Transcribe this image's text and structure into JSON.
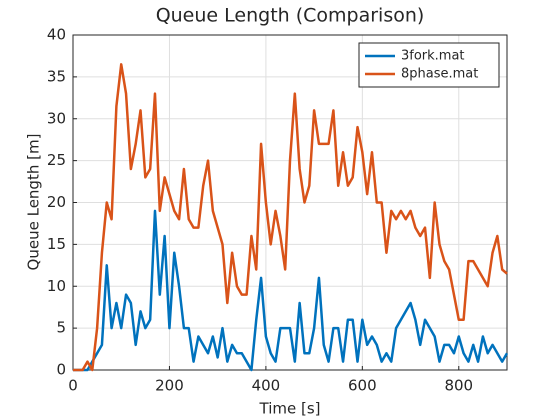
{
  "chart_data": {
    "type": "line",
    "title": "Queue Length (Comparison)",
    "xlabel": "Time [s]",
    "ylabel": "Queue Length [m]",
    "x": [
      0,
      10,
      20,
      30,
      40,
      50,
      60,
      70,
      80,
      90,
      100,
      110,
      120,
      130,
      140,
      150,
      160,
      170,
      180,
      190,
      200,
      210,
      220,
      230,
      240,
      250,
      260,
      270,
      280,
      290,
      300,
      310,
      320,
      330,
      340,
      350,
      360,
      370,
      380,
      390,
      400,
      410,
      420,
      430,
      440,
      450,
      460,
      470,
      480,
      490,
      500,
      510,
      520,
      530,
      540,
      550,
      560,
      570,
      580,
      590,
      600,
      610,
      620,
      630,
      640,
      650,
      660,
      670,
      680,
      690,
      700,
      710,
      720,
      730,
      740,
      750,
      760,
      770,
      780,
      790,
      800,
      810,
      820,
      830,
      840,
      850,
      860,
      870,
      880,
      890,
      900
    ],
    "series": [
      {
        "name": "3fork.mat",
        "color": "#0072BD",
        "values": [
          0,
          0,
          0,
          0,
          1,
          2,
          3,
          12.5,
          5,
          8,
          5,
          9,
          8,
          3,
          7,
          5,
          6,
          19,
          9,
          16,
          5,
          14,
          10,
          5,
          5,
          1,
          4,
          3,
          2,
          4,
          1.5,
          5,
          1,
          3,
          2,
          2,
          1,
          0,
          6,
          11,
          4,
          2,
          1,
          5,
          5,
          5,
          1,
          8,
          2,
          2,
          5,
          11,
          3,
          1,
          5,
          5,
          1,
          6,
          6,
          1,
          6,
          3,
          4,
          3,
          1,
          2,
          1,
          5,
          6,
          7,
          8,
          6,
          3,
          6,
          5,
          4,
          1,
          3,
          3,
          2,
          4,
          2,
          1,
          3,
          1,
          4,
          2,
          3,
          2,
          1,
          2
        ]
      },
      {
        "name": "8phase.mat",
        "color": "#D95319",
        "values": [
          0,
          0,
          0,
          1,
          0,
          5,
          14,
          20,
          18,
          31.5,
          36.5,
          33,
          24,
          27,
          31,
          23,
          24,
          33,
          19,
          23,
          21,
          19,
          18,
          24,
          18,
          17,
          17,
          22,
          25,
          19,
          17,
          15,
          8,
          14,
          10,
          9,
          9,
          16,
          12,
          27,
          20,
          15,
          19,
          16,
          12,
          25,
          33,
          24,
          20,
          22,
          31,
          27,
          27,
          27,
          31,
          22,
          26,
          22,
          23,
          29,
          26,
          21,
          26,
          20,
          20,
          14,
          19,
          18,
          19,
          18,
          19,
          17,
          16,
          17,
          11,
          20,
          15,
          13,
          12,
          9,
          6,
          6,
          13,
          13,
          12,
          11,
          10,
          14,
          16,
          12,
          11.5
        ]
      }
    ],
    "xlim": [
      0,
      900
    ],
    "xticks": [
      0,
      200,
      400,
      600,
      800
    ],
    "ylim": [
      0,
      40
    ],
    "yticks": [
      0,
      5,
      10,
      15,
      20,
      25,
      30,
      35,
      40
    ],
    "grid": true,
    "legend": "northeast"
  }
}
